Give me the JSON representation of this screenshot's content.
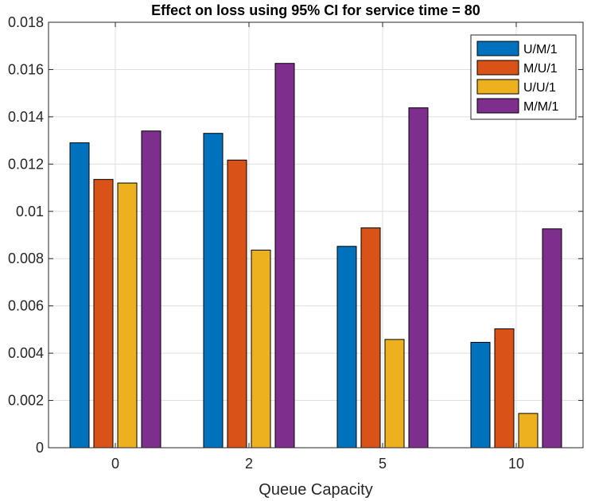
{
  "chart_data": {
    "type": "bar",
    "title": "Effect on loss using 95% CI for service time = 80",
    "xlabel": "Queue Capacity",
    "ylabel": "",
    "categories": [
      "0",
      "2",
      "5",
      "10"
    ],
    "ylim": [
      0,
      0.018
    ],
    "yticks": [
      0,
      0.002,
      0.004,
      0.006,
      0.008,
      0.01,
      0.012,
      0.014,
      0.016,
      0.018
    ],
    "ytick_labels": [
      "0",
      "0.002",
      "0.004",
      "0.006",
      "0.008",
      "0.01",
      "0.012",
      "0.014",
      "0.016",
      "0.018"
    ],
    "grid": true,
    "legend_position": "top-right",
    "series": [
      {
        "name": "U/M/1",
        "color": "#0072BD",
        "values": [
          0.0129,
          0.0133,
          0.00852,
          0.00446
        ]
      },
      {
        "name": "M/U/1",
        "color": "#D95319",
        "values": [
          0.01135,
          0.01217,
          0.0093,
          0.00503
        ]
      },
      {
        "name": "U/U/1",
        "color": "#EDB120",
        "values": [
          0.0112,
          0.00836,
          0.00458,
          0.00145
        ]
      },
      {
        "name": "M/M/1",
        "color": "#7E2F8E",
        "values": [
          0.0134,
          0.01626,
          0.01438,
          0.00926
        ]
      }
    ]
  }
}
